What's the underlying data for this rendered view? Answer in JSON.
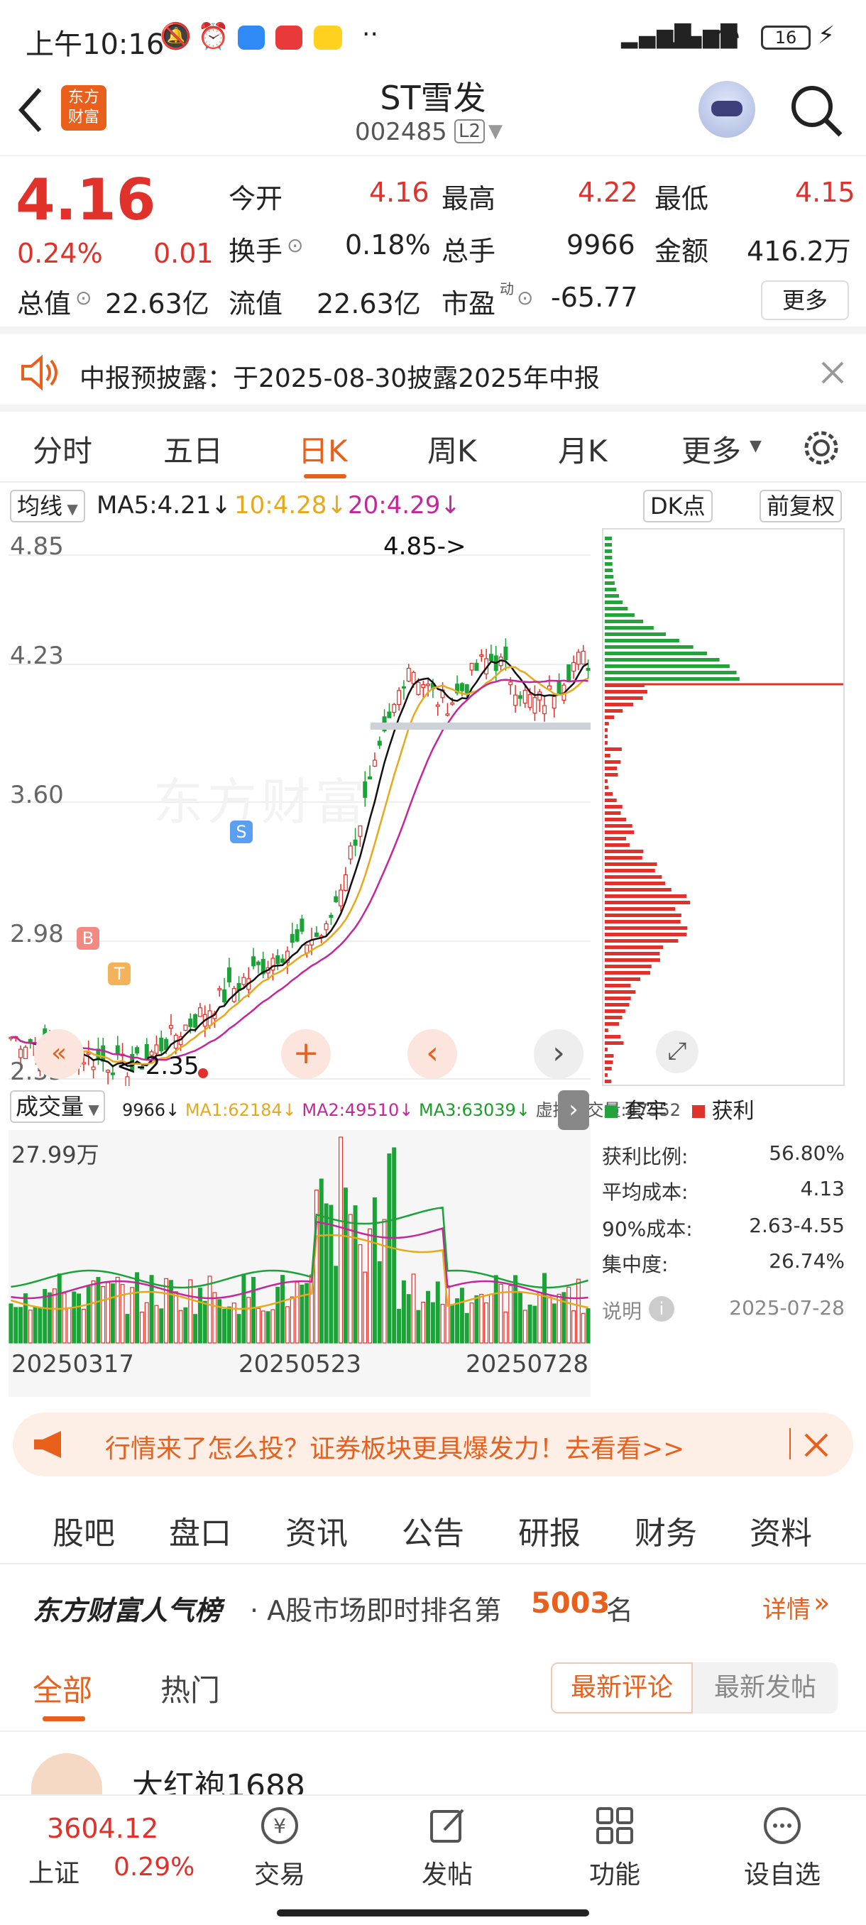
{
  "status": {
    "time": "上午10:16",
    "battery": "16"
  },
  "header": {
    "back_icon": "back-arrow-icon",
    "logo_text": "东方\n财富",
    "name": "ST雪发",
    "code": "002485",
    "level": "L2"
  },
  "quote": {
    "price": "4.16",
    "pct": "0.24%",
    "chg": "0.01",
    "open_label": "今开",
    "open": "4.16",
    "high_label": "最高",
    "high": "4.22",
    "low_label": "最低",
    "low": "4.15",
    "turnover_label": "换手",
    "turnover": "0.18%",
    "vol_label": "总手",
    "vol": "9966",
    "amount_label": "金额",
    "amount": "416.2万",
    "mcap_label": "总值",
    "mcap": "22.63亿",
    "float_label": "流值",
    "float": "22.63亿",
    "pe_label": "市盈",
    "pe_sup": "动",
    "pe": "-65.77",
    "more": "更多"
  },
  "notice": {
    "text": "中报预披露：于2025-08-30披露2025年中报"
  },
  "tabs": [
    "分时",
    "五日",
    "日K",
    "周K",
    "月K",
    "更多"
  ],
  "ma": {
    "selector": "均线",
    "ma5": "MA5:4.21",
    "ma10": "10:4.28",
    "ma20": "20:4.29",
    "dk": "DK点",
    "adjust": "前复权"
  },
  "kchart": {
    "yticks": [
      "4.85",
      "4.23",
      "3.60",
      "2.98",
      "2.35"
    ],
    "high_label": "4.85->",
    "low_label": "<-2.35",
    "b": "B",
    "s": "S",
    "t": "T",
    "watermark": "东方财富"
  },
  "chart_data": {
    "type": "candlestick",
    "y_axis_ticks": [
      4.85,
      4.23,
      3.6,
      2.98,
      2.35
    ],
    "high": 4.85,
    "low": 2.35,
    "x_ticks": [
      "20250317",
      "20250523",
      "20250728"
    ],
    "volume_max": "27.99万"
  },
  "volume": {
    "label": "成交量",
    "v": "9966",
    "ma1": "MA1:62184",
    "ma2": "MA2:49510",
    "ma3": "MA3:63039",
    "virt": "虚拟成交量:47352",
    "max": "27.99万",
    "dates": [
      "20250317",
      "20250523",
      "20250728"
    ]
  },
  "chips": {
    "legend_trap": "套牢",
    "legend_profit": "获利",
    "rows": [
      {
        "k": "获利比例:",
        "v": "56.80%"
      },
      {
        "k": "平均成本:",
        "v": "4.13"
      },
      {
        "k": "90%成本:",
        "v": "2.63-4.55"
      },
      {
        "k": "集中度:",
        "v": "26.74%"
      }
    ],
    "note": "说明",
    "date": "2025-07-28"
  },
  "ad": {
    "text": "行情来了怎么投？证券板块更具爆发力！去看看>>"
  },
  "forum_tabs": [
    "股吧",
    "盘口",
    "资讯",
    "公告",
    "研报",
    "财务",
    "资料"
  ],
  "rank": {
    "brand": "东方财富人气榜",
    "mid": "· A股市场即时排名第",
    "num": "5003",
    "end": "名",
    "detail": "详情"
  },
  "sub": {
    "all": "全部",
    "hot": "热门",
    "latest_comment": "最新评论",
    "latest_post": "最新发帖"
  },
  "post": {
    "user": "大红袍1688"
  },
  "bottom": {
    "index_val": "3604.12",
    "index_name": "上证",
    "index_pct": "0.29%",
    "trade": "交易",
    "post": "发帖",
    "func": "功能",
    "watch": "设自选"
  }
}
